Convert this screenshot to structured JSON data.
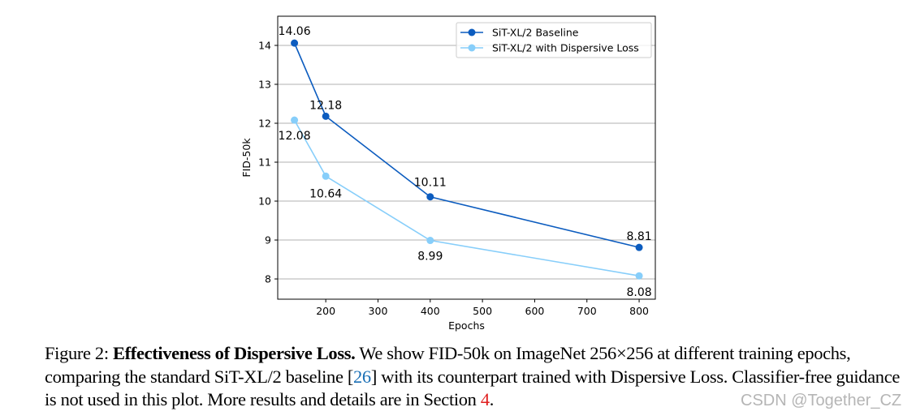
{
  "chart_data": {
    "type": "line",
    "title": "",
    "xlabel": "Epochs",
    "ylabel": "FID-50k",
    "xlim": [
      108,
      831
    ],
    "ylim": [
      7.48,
      14.75
    ],
    "xticks": [
      200,
      300,
      400,
      500,
      600,
      700,
      800
    ],
    "yticks": [
      8,
      9,
      10,
      11,
      12,
      13,
      14
    ],
    "grid": "horizontal",
    "legend": "top-right",
    "series": [
      {
        "name": "SiT-XL/2 Baseline",
        "color": "#0c5cbf",
        "x": [
          140,
          200,
          400,
          800
        ],
        "y": [
          14.06,
          12.18,
          10.11,
          8.81
        ],
        "labels": [
          "14.06",
          "12.18",
          "10.11",
          "8.81"
        ]
      },
      {
        "name": "SiT-XL/2 with Dispersive Loss",
        "color": "#87cefa",
        "x": [
          140,
          200,
          400,
          800
        ],
        "y": [
          12.08,
          10.64,
          8.99,
          8.08
        ],
        "labels": [
          "12.08",
          "10.64",
          "8.99",
          "8.08"
        ]
      }
    ]
  },
  "caption": {
    "prefix": "Figure 2: ",
    "bold": "Effectiveness of Dispersive Loss.",
    "text1": " We show FID-50k on ImageNet 256×256 at different training epochs, comparing the standard SiT-XL/2 baseline [",
    "cite": "26",
    "text2": "] with its counterpart trained with Dispersive Loss. Classifier-free guidance is not used in this plot. More results and details are in Section ",
    "section_ref": "4",
    "text3": "."
  },
  "watermark": "CSDN @Together_CZ"
}
